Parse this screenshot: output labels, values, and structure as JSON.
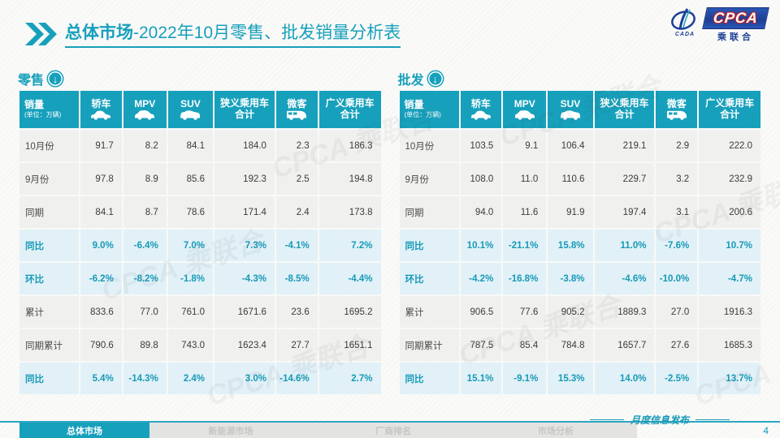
{
  "header": {
    "title_main": "总体市场",
    "title_rest": "-2022年10月零售、批发销量分析表"
  },
  "logo": {
    "cpca": "CPCA",
    "cada": "CADA",
    "union": "乘联合"
  },
  "colors": {
    "teal": "#17a0bc",
    "percent_row_bg": "#e1f1f7",
    "normal_row_bg": "#f0f0ee",
    "percent_text": "#1799b7"
  },
  "watermark_text": "CPCA 乘联合",
  "icons": {
    "chevrons": "double-right-chevron-icon",
    "panel_arrow": "circle-down-arrow-icon",
    "column_icons": [
      "sedan-icon",
      "mpv-icon",
      "suv-icon",
      null,
      "minivan-icon",
      null
    ]
  },
  "tables": [
    {
      "id": "retail",
      "title": "零售",
      "header": {
        "label": "销量",
        "unit": "(单位：万辆)",
        "columns": [
          "轿车",
          "MPV",
          "SUV",
          "狭义乘用车合计",
          "微客",
          "广义乘用车合计"
        ]
      },
      "rows": [
        {
          "label": "10月份",
          "type": "normal",
          "values": [
            "91.7",
            "8.2",
            "84.1",
            "184.0",
            "2.3",
            "186.3"
          ]
        },
        {
          "label": "9月份",
          "type": "normal",
          "values": [
            "97.8",
            "8.9",
            "85.6",
            "192.3",
            "2.5",
            "194.8"
          ]
        },
        {
          "label": "同期",
          "type": "normal",
          "values": [
            "84.1",
            "8.7",
            "78.6",
            "171.4",
            "2.4",
            "173.8"
          ]
        },
        {
          "label": "同比",
          "type": "percent",
          "values": [
            "9.0%",
            "-6.4%",
            "7.0%",
            "7.3%",
            "-4.1%",
            "7.2%"
          ]
        },
        {
          "label": "环比",
          "type": "percent",
          "values": [
            "-6.2%",
            "-8.2%",
            "-1.8%",
            "-4.3%",
            "-8.5%",
            "-4.4%"
          ]
        },
        {
          "label": "累计",
          "type": "normal",
          "values": [
            "833.6",
            "77.0",
            "761.0",
            "1671.6",
            "23.6",
            "1695.2"
          ]
        },
        {
          "label": "同期累计",
          "type": "normal",
          "values": [
            "790.6",
            "89.8",
            "743.0",
            "1623.4",
            "27.7",
            "1651.1"
          ]
        },
        {
          "label": "同比",
          "type": "percent",
          "values": [
            "5.4%",
            "-14.3%",
            "2.4%",
            "3.0%",
            "-14.6%",
            "2.7%"
          ]
        }
      ]
    },
    {
      "id": "wholesale",
      "title": "批发",
      "header": {
        "label": "销量",
        "unit": "(单位：万辆)",
        "columns": [
          "轿车",
          "MPV",
          "SUV",
          "狭义乘用车合计",
          "微客",
          "广义乘用车合计"
        ]
      },
      "rows": [
        {
          "label": "10月份",
          "type": "normal",
          "values": [
            "103.5",
            "9.1",
            "106.4",
            "219.1",
            "2.9",
            "222.0"
          ]
        },
        {
          "label": "9月份",
          "type": "normal",
          "values": [
            "108.0",
            "11.0",
            "110.6",
            "229.7",
            "3.2",
            "232.9"
          ]
        },
        {
          "label": "同期",
          "type": "normal",
          "values": [
            "94.0",
            "11.6",
            "91.9",
            "197.4",
            "3.1",
            "200.6"
          ]
        },
        {
          "label": "同比",
          "type": "percent",
          "values": [
            "10.1%",
            "-21.1%",
            "15.8%",
            "11.0%",
            "-7.6%",
            "10.7%"
          ]
        },
        {
          "label": "环比",
          "type": "percent",
          "values": [
            "-4.2%",
            "-16.8%",
            "-3.8%",
            "-4.6%",
            "-10.0%",
            "-4.7%"
          ]
        },
        {
          "label": "累计",
          "type": "normal",
          "values": [
            "906.5",
            "77.6",
            "905.2",
            "1889.3",
            "27.0",
            "1916.3"
          ]
        },
        {
          "label": "同期累计",
          "type": "normal",
          "values": [
            "787.5",
            "85.4",
            "784.8",
            "1657.7",
            "27.6",
            "1685.3"
          ]
        },
        {
          "label": "同比",
          "type": "percent",
          "values": [
            "15.1%",
            "-9.1%",
            "15.3%",
            "14.0%",
            "-2.5%",
            "13.7%"
          ]
        }
      ]
    }
  ],
  "footer": {
    "tabs": [
      {
        "label": "总体市场",
        "active": true
      },
      {
        "label": "新能源市场",
        "active": false
      },
      {
        "label": "厂商排名",
        "active": false
      },
      {
        "label": "市场分析",
        "active": false
      }
    ],
    "note": "月度信息发布",
    "page_number": "4"
  }
}
